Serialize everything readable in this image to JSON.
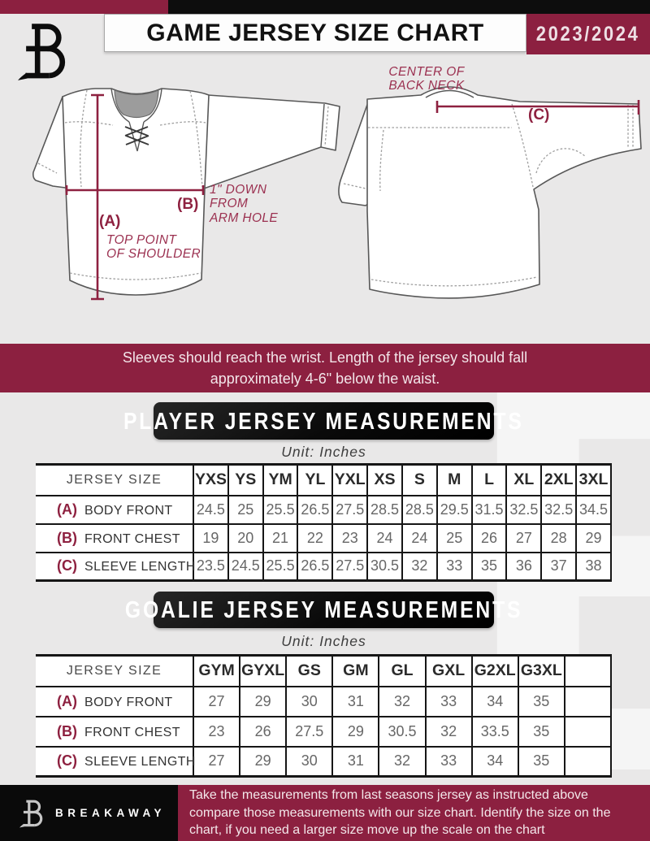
{
  "header": {
    "title": "GAME JERSEY SIZE CHART",
    "season": "2023/2024",
    "logo_icon": "breakaway-b-monogram"
  },
  "diagram": {
    "front": {
      "a_label": "(A)",
      "a_note": "TOP POINT\nOF SHOULDER",
      "b_label": "(B)",
      "b_note": "1\" DOWN\nFROM\nARM HOLE"
    },
    "back": {
      "c_label": "(C)",
      "c_note": "CENTER OF\nBACK NECK"
    }
  },
  "notice": "Sleeves should reach the wrist. Length of the jersey should fall\napproximately 4-6\" below the waist.",
  "chart_data": [
    {
      "type": "table",
      "title": "PLAYER JERSEY MEASUREMENTS",
      "unit_label": "Unit: Inches",
      "corner_label": "JERSEY SIZE",
      "header": [
        "YXS",
        "YS",
        "YM",
        "YL",
        "YXL",
        "XS",
        "S",
        "M",
        "L",
        "XL",
        "2XL",
        "3XL"
      ],
      "rows": [
        {
          "key": "(A)",
          "label": "BODY FRONT",
          "values": [
            "24.5",
            "25",
            "25.5",
            "26.5",
            "27.5",
            "28.5",
            "28.5",
            "29.5",
            "31.5",
            "32.5",
            "32.5",
            "34.5"
          ]
        },
        {
          "key": "(B)",
          "label": "FRONT CHEST",
          "values": [
            "19",
            "20",
            "21",
            "22",
            "23",
            "24",
            "24",
            "25",
            "26",
            "27",
            "28",
            "29"
          ]
        },
        {
          "key": "(C)",
          "label": "SLEEVE LENGTH",
          "values": [
            "23.5",
            "24.5",
            "25.5",
            "26.5",
            "27.5",
            "30.5",
            "32",
            "33",
            "35",
            "36",
            "37",
            "38"
          ]
        }
      ]
    },
    {
      "type": "table",
      "title": "GOALIE JERSEY MEASUREMENTS",
      "unit_label": "Unit: Inches",
      "corner_label": "JERSEY SIZE",
      "header": [
        "GYM",
        "GYXL",
        "GS",
        "GM",
        "GL",
        "GXL",
        "G2XL",
        "G3XL",
        ""
      ],
      "rows": [
        {
          "key": "(A)",
          "label": "BODY FRONT",
          "values": [
            "27",
            "29",
            "30",
            "31",
            "32",
            "33",
            "34",
            "35",
            ""
          ]
        },
        {
          "key": "(B)",
          "label": "FRONT CHEST",
          "values": [
            "23",
            "26",
            "27.5",
            "29",
            "30.5",
            "32",
            "33.5",
            "35",
            ""
          ]
        },
        {
          "key": "(C)",
          "label": "SLEEVE LENGTH",
          "values": [
            "27",
            "29",
            "30",
            "31",
            "32",
            "33",
            "34",
            "35",
            ""
          ]
        }
      ]
    }
  ],
  "footer": {
    "brand": "BREAKAWAY",
    "logo_icon": "breakaway-b-monogram",
    "note": "Take the measurements from last seasons jersey as instructed above compare those measurements with our size chart. Identify the size on the chart, if you need a larger size move up the scale on the chart"
  },
  "colors": {
    "maroon": "#8c2040",
    "black": "#0d0d0d",
    "page_background": "#e9e8e8",
    "measure_line": "#8e2140"
  }
}
